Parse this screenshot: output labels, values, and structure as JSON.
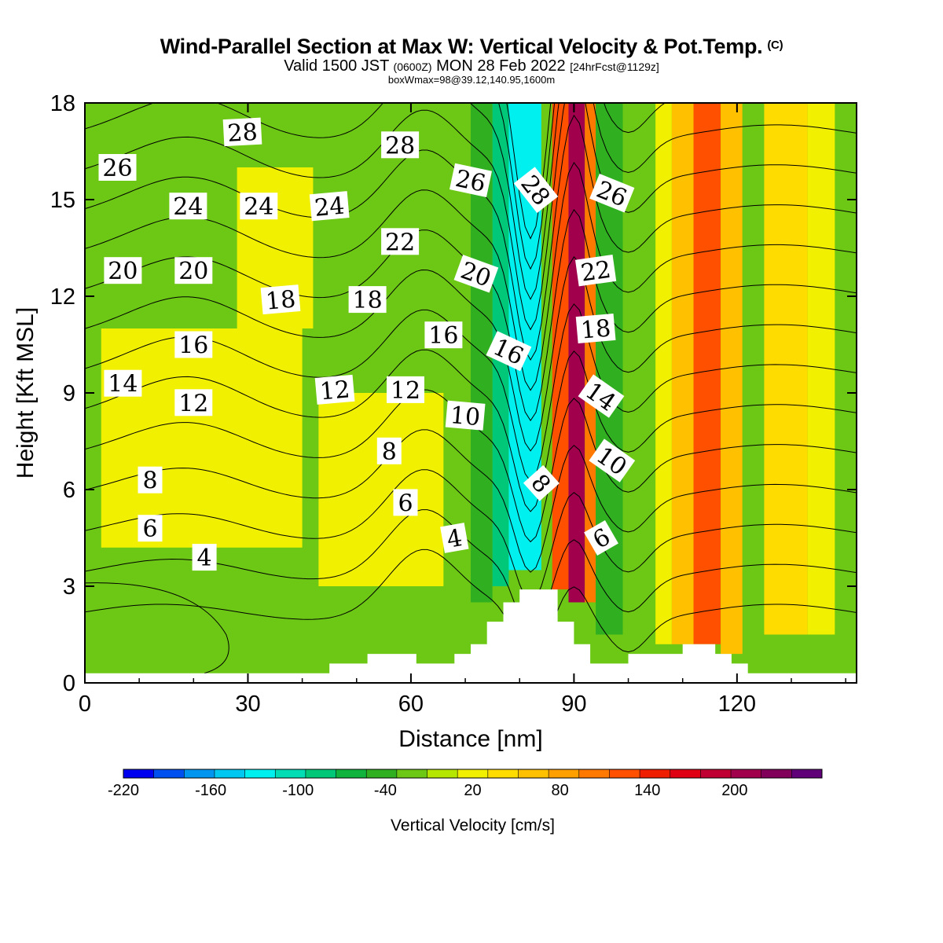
{
  "title": {
    "line1": "Wind-Parallel Section at Max W: Vertical Velocity & Pot.Temp.",
    "copyright": "(C)",
    "line2_a": "Valid 1500 JST",
    "line2_b": "(0600Z)",
    "line2_c": "MON 28 Feb 2022",
    "line2_d": "[24hrFcst@1129z]",
    "line3": "boxWmax=98@39.12,140.95,1600m"
  },
  "chart_data": {
    "type": "heatmap",
    "xlabel": "Distance [nm]",
    "ylabel": "Height [Kft MSL]",
    "xlim": [
      0,
      142
    ],
    "ylim": [
      0,
      18
    ],
    "xticks": [
      0,
      30,
      60,
      90,
      120
    ],
    "yticks": [
      0,
      3,
      6,
      9,
      12,
      15,
      18
    ],
    "colorbar": {
      "label": "Vertical Velocity [cm/s]",
      "min": -220,
      "max": 260,
      "step": 20,
      "tick_labels": [
        "-220",
        "-160",
        "-100",
        "-40",
        "20",
        "80",
        "140",
        "200"
      ],
      "colors": [
        "#0000f0",
        "#0050f0",
        "#0096f0",
        "#00c8f0",
        "#00f0f0",
        "#00dcb4",
        "#00c878",
        "#10b43c",
        "#30b020",
        "#6cc814",
        "#b4e600",
        "#f0f000",
        "#ffdc00",
        "#ffc000",
        "#ffa000",
        "#ff7800",
        "#ff5000",
        "#f01e00",
        "#e00014",
        "#c00032",
        "#a0004c",
        "#80005a",
        "#600078"
      ]
    },
    "terrain": [
      [
        0,
        0.3
      ],
      [
        45,
        0.3
      ],
      [
        45,
        0.6
      ],
      [
        52,
        0.6
      ],
      [
        52,
        0.9
      ],
      [
        61,
        0.9
      ],
      [
        61,
        0.6
      ],
      [
        68,
        0.6
      ],
      [
        68,
        0.9
      ],
      [
        71,
        0.9
      ],
      [
        71,
        1.2
      ],
      [
        74,
        1.2
      ],
      [
        74,
        1.9
      ],
      [
        77,
        1.9
      ],
      [
        77,
        2.5
      ],
      [
        80,
        2.5
      ],
      [
        80,
        2.9
      ],
      [
        87,
        2.9
      ],
      [
        87,
        1.9
      ],
      [
        90,
        1.9
      ],
      [
        90,
        1.2
      ],
      [
        93,
        1.2
      ],
      [
        93,
        0.6
      ],
      [
        100,
        0.6
      ],
      [
        100,
        0.9
      ],
      [
        110,
        0.9
      ],
      [
        110,
        1.2
      ],
      [
        116,
        1.2
      ],
      [
        116,
        0.9
      ],
      [
        119,
        0.9
      ],
      [
        119,
        0.6
      ],
      [
        122,
        0.6
      ],
      [
        122,
        0.3
      ],
      [
        142,
        0.3
      ]
    ],
    "velocity_bands": [
      {
        "x1": 0,
        "x2": 29,
        "y1": 0.3,
        "y2": 4.2,
        "value": -25
      },
      {
        "x1": 3,
        "x2": 40,
        "y1": 4.2,
        "y2": 11,
        "value": 10
      },
      {
        "x1": 28,
        "x2": 42,
        "y1": 11,
        "y2": 16,
        "value": 5
      },
      {
        "x1": 43,
        "x2": 66,
        "y1": 3,
        "y2": 9,
        "value": 10
      },
      {
        "x1": 66,
        "x2": 71,
        "y1": 0.6,
        "y2": 18,
        "value": -30
      },
      {
        "x1": 71,
        "x2": 75,
        "y1": 2.5,
        "y2": 18,
        "value": -60
      },
      {
        "x1": 75,
        "x2": 78,
        "y1": 3,
        "y2": 18,
        "value": -90
      },
      {
        "x1": 78,
        "x2": 84,
        "y1": 3.5,
        "y2": 18,
        "value": -140
      },
      {
        "x1": 84,
        "x2": 86,
        "y1": 3,
        "y2": 18,
        "value": -40
      },
      {
        "x1": 86,
        "x2": 89,
        "y1": 2.9,
        "y2": 18,
        "value": 100
      },
      {
        "x1": 89,
        "x2": 92,
        "y1": 2.5,
        "y2": 18,
        "value": 190
      },
      {
        "x1": 92,
        "x2": 94,
        "y1": 2.5,
        "y2": 18,
        "value": 80
      },
      {
        "x1": 94,
        "x2": 99,
        "y1": 1.5,
        "y2": 18,
        "value": -60
      },
      {
        "x1": 99,
        "x2": 105,
        "y1": 1.2,
        "y2": 18,
        "value": -25
      },
      {
        "x1": 105,
        "x2": 108,
        "y1": 1.2,
        "y2": 18,
        "value": 10
      },
      {
        "x1": 108,
        "x2": 112,
        "y1": 1.2,
        "y2": 18,
        "value": 40
      },
      {
        "x1": 112,
        "x2": 117,
        "y1": 1.2,
        "y2": 18,
        "value": 100
      },
      {
        "x1": 117,
        "x2": 121,
        "y1": 0.9,
        "y2": 18,
        "value": 50
      },
      {
        "x1": 121,
        "x2": 125,
        "y1": 2.5,
        "y2": 18,
        "value": -30
      },
      {
        "x1": 125,
        "x2": 133,
        "y1": 1.5,
        "y2": 18,
        "value": 20
      },
      {
        "x1": 133,
        "x2": 138,
        "y1": 1.5,
        "y2": 18,
        "value": 10
      }
    ],
    "theta_levels": [
      0,
      2,
      4,
      6,
      8,
      10,
      12,
      14,
      16,
      18,
      20,
      22,
      24,
      26,
      28
    ],
    "theta_contour_labels": [
      {
        "text": "28",
        "x": 29,
        "y": 17.1,
        "angle": -3
      },
      {
        "text": "28",
        "x": 58,
        "y": 16.7,
        "angle": 0
      },
      {
        "text": "26",
        "x": 6,
        "y": 16.0,
        "angle": 0
      },
      {
        "text": "26",
        "x": 71,
        "y": 15.6,
        "angle": 12
      },
      {
        "text": "28",
        "x": 83,
        "y": 15.3,
        "angle": 52
      },
      {
        "text": "26",
        "x": 97,
        "y": 15.2,
        "angle": 22
      },
      {
        "text": "24",
        "x": 19,
        "y": 14.8,
        "angle": 0
      },
      {
        "text": "24",
        "x": 32,
        "y": 14.8,
        "angle": 0
      },
      {
        "text": "24",
        "x": 45,
        "y": 14.8,
        "angle": -5
      },
      {
        "text": "22",
        "x": 58,
        "y": 13.7,
        "angle": 0
      },
      {
        "text": "20",
        "x": 7,
        "y": 12.8,
        "angle": 0
      },
      {
        "text": "20",
        "x": 20,
        "y": 12.8,
        "angle": 0
      },
      {
        "text": "22",
        "x": 94,
        "y": 12.8,
        "angle": -8
      },
      {
        "text": "20",
        "x": 72,
        "y": 12.7,
        "angle": 20
      },
      {
        "text": "18",
        "x": 36,
        "y": 11.9,
        "angle": -5
      },
      {
        "text": "18",
        "x": 52,
        "y": 11.9,
        "angle": 0
      },
      {
        "text": "18",
        "x": 94,
        "y": 11.0,
        "angle": -5
      },
      {
        "text": "16",
        "x": 66,
        "y": 10.8,
        "angle": 0
      },
      {
        "text": "16",
        "x": 78,
        "y": 10.3,
        "angle": 25
      },
      {
        "text": "16",
        "x": 20,
        "y": 10.5,
        "angle": 0
      },
      {
        "text": "14",
        "x": 7,
        "y": 9.3,
        "angle": 0
      },
      {
        "text": "12",
        "x": 20,
        "y": 8.7,
        "angle": 0
      },
      {
        "text": "12",
        "x": 46,
        "y": 9.1,
        "angle": -5
      },
      {
        "text": "12",
        "x": 59,
        "y": 9.1,
        "angle": 0
      },
      {
        "text": "14",
        "x": 95,
        "y": 8.9,
        "angle": 35
      },
      {
        "text": "10",
        "x": 70,
        "y": 8.3,
        "angle": 5
      },
      {
        "text": "8",
        "x": 56,
        "y": 7.2,
        "angle": 0
      },
      {
        "text": "10",
        "x": 97,
        "y": 6.9,
        "angle": 35
      },
      {
        "text": "8",
        "x": 12,
        "y": 6.3,
        "angle": 0
      },
      {
        "text": "8",
        "x": 84,
        "y": 6.2,
        "angle": 48
      },
      {
        "text": "6",
        "x": 59,
        "y": 5.6,
        "angle": 0
      },
      {
        "text": "6",
        "x": 12,
        "y": 4.8,
        "angle": 0
      },
      {
        "text": "4",
        "x": 68,
        "y": 4.5,
        "angle": -10
      },
      {
        "text": "6",
        "x": 95,
        "y": 4.5,
        "angle": -30
      },
      {
        "text": "4",
        "x": 22,
        "y": 3.9,
        "angle": 0
      }
    ]
  }
}
